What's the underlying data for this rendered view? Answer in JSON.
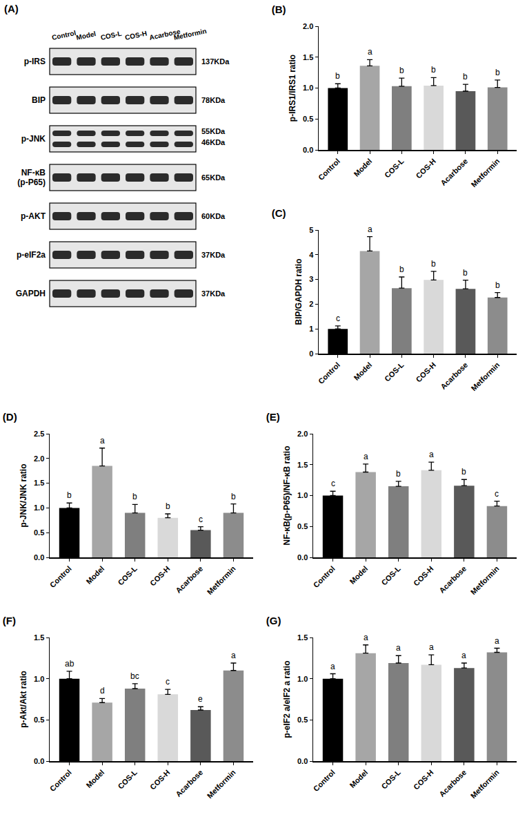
{
  "blot": {
    "title": "(A)",
    "lanes": [
      "Control",
      "Model",
      "COS-L",
      "COS-H",
      "Acarbose",
      "Metformin"
    ],
    "rows": [
      {
        "label": [
          "p-IRS"
        ],
        "sizes": [
          "137KDa"
        ]
      },
      {
        "label": [
          "BIP"
        ],
        "sizes": [
          "78KDa"
        ]
      },
      {
        "label": [
          "p-JNK"
        ],
        "sizes": [
          "55KDa",
          "46KDa"
        ]
      },
      {
        "label": [
          "NF-κB",
          "(p-P65)"
        ],
        "sizes": [
          "65KDa"
        ]
      },
      {
        "label": [
          "p-AKT"
        ],
        "sizes": [
          "60KDa"
        ]
      },
      {
        "label": [
          "p-eIF2a"
        ],
        "sizes": [
          "37KDa"
        ]
      },
      {
        "label": [
          "GAPDH"
        ],
        "sizes": [
          "37KDa"
        ]
      }
    ]
  },
  "chart_data": [
    {
      "type": "bar",
      "title": "(B)",
      "y_label": "p-IRS1/IRS1 ratio",
      "categories": [
        "Control",
        "Model",
        "COS-L",
        "COS-H",
        "Acarbose",
        "Metformin"
      ],
      "values": [
        1.0,
        1.36,
        1.03,
        1.04,
        0.95,
        1.01
      ],
      "errors": [
        0.07,
        0.1,
        0.13,
        0.13,
        0.11,
        0.12
      ],
      "letters": [
        "b",
        "a",
        "b",
        "b",
        "b",
        "b"
      ],
      "colors": [
        "#000000",
        "#a6a6a6",
        "#7f7f7f",
        "#d9d9d9",
        "#595959",
        "#8c8c8c"
      ],
      "ylim": [
        0,
        2.0
      ],
      "yticks": [
        {
          "value": 0,
          "label": "0.0"
        },
        0.5,
        {
          "value": 1,
          "label": "1.0"
        },
        1.5,
        {
          "value": 2,
          "label": "2.0"
        }
      ]
    },
    {
      "type": "bar",
      "title": "(C)",
      "y_label": "BIP/GAPDH ratio",
      "categories": [
        "Control",
        "Model",
        "COS-L",
        "COS-H",
        "Acarbose",
        "Metformin"
      ],
      "values": [
        1.0,
        4.15,
        2.65,
        2.98,
        2.62,
        2.27
      ],
      "errors": [
        0.12,
        0.58,
        0.45,
        0.35,
        0.35,
        0.2
      ],
      "letters": [
        "c",
        "a",
        "b",
        "b",
        "b",
        "b"
      ],
      "colors": [
        "#000000",
        "#a6a6a6",
        "#7f7f7f",
        "#d9d9d9",
        "#595959",
        "#8c8c8c"
      ],
      "ylim": [
        0,
        5
      ],
      "yticks": [
        0,
        1,
        2,
        3,
        4,
        5
      ]
    },
    {
      "type": "bar",
      "title": "(D)",
      "y_label": "p-JNK/JNK ratio",
      "categories": [
        "Control",
        "Model",
        "COS-L",
        "COS-H",
        "Acarbose",
        "Metformin"
      ],
      "values": [
        1.0,
        1.85,
        0.9,
        0.8,
        0.55,
        0.9
      ],
      "errors": [
        0.1,
        0.36,
        0.17,
        0.08,
        0.07,
        0.18
      ],
      "letters": [
        "b",
        "a",
        "b",
        "b",
        "c",
        "b"
      ],
      "colors": [
        "#000000",
        "#a6a6a6",
        "#7f7f7f",
        "#d9d9d9",
        "#595959",
        "#8c8c8c"
      ],
      "ylim": [
        0,
        2.5
      ],
      "yticks": [
        {
          "value": 0,
          "label": "0.0"
        },
        0.5,
        {
          "value": 1,
          "label": "1.0"
        },
        1.5,
        {
          "value": 2,
          "label": "2.0"
        },
        2.5
      ]
    },
    {
      "type": "bar",
      "title": "(E)",
      "y_label": "NF-κB(p-P65)/NF-κB ratio",
      "categories": [
        "Control",
        "Model",
        "COS-L",
        "COS-H",
        "Acarbose",
        "Metformin"
      ],
      "values": [
        1.0,
        1.38,
        1.15,
        1.41,
        1.16,
        0.83
      ],
      "errors": [
        0.07,
        0.13,
        0.08,
        0.13,
        0.1,
        0.08
      ],
      "letters": [
        "c",
        "a",
        "b",
        "a",
        "b",
        "c"
      ],
      "colors": [
        "#000000",
        "#a6a6a6",
        "#7f7f7f",
        "#d9d9d9",
        "#595959",
        "#8c8c8c"
      ],
      "ylim": [
        0,
        2.0
      ],
      "yticks": [
        {
          "value": 0,
          "label": "0.0"
        },
        0.5,
        {
          "value": 1,
          "label": "1.0"
        },
        1.5,
        {
          "value": 2,
          "label": "2.0"
        }
      ]
    },
    {
      "type": "bar",
      "title": "(F)",
      "y_label": "p-Akt/Akt ratio",
      "categories": [
        "Control",
        "Model",
        "COS-L",
        "COS-H",
        "Acarbose",
        "Metformin"
      ],
      "values": [
        1.0,
        0.71,
        0.88,
        0.81,
        0.62,
        1.1
      ],
      "errors": [
        0.09,
        0.05,
        0.06,
        0.06,
        0.04,
        0.09
      ],
      "letters": [
        "ab",
        "d",
        "bc",
        "c",
        "e",
        "a"
      ],
      "colors": [
        "#000000",
        "#a6a6a6",
        "#7f7f7f",
        "#d9d9d9",
        "#595959",
        "#8c8c8c"
      ],
      "ylim": [
        0,
        1.5
      ],
      "yticks": [
        {
          "value": 0,
          "label": "0.0"
        },
        0.5,
        {
          "value": 1,
          "label": "1.0"
        },
        1.5
      ]
    },
    {
      "type": "bar",
      "title": "(G)",
      "y_label": "p-eIF2 a/eIF2 a ratio",
      "categories": [
        "Control",
        "Model",
        "COS-L",
        "COS-H",
        "Acarbose",
        "Metformin"
      ],
      "values": [
        1.0,
        1.31,
        1.19,
        1.17,
        1.13,
        1.32
      ],
      "errors": [
        0.06,
        0.1,
        0.09,
        0.12,
        0.06,
        0.05
      ],
      "letters": [
        "a",
        "a",
        "a",
        "a",
        "a",
        "a"
      ],
      "colors": [
        "#000000",
        "#a6a6a6",
        "#7f7f7f",
        "#d9d9d9",
        "#595959",
        "#8c8c8c"
      ],
      "ylim": [
        0,
        1.5
      ],
      "yticks": [
        {
          "value": 0,
          "label": "0.0"
        },
        0.5,
        {
          "value": 1,
          "label": "1.0"
        },
        1.5
      ]
    }
  ]
}
